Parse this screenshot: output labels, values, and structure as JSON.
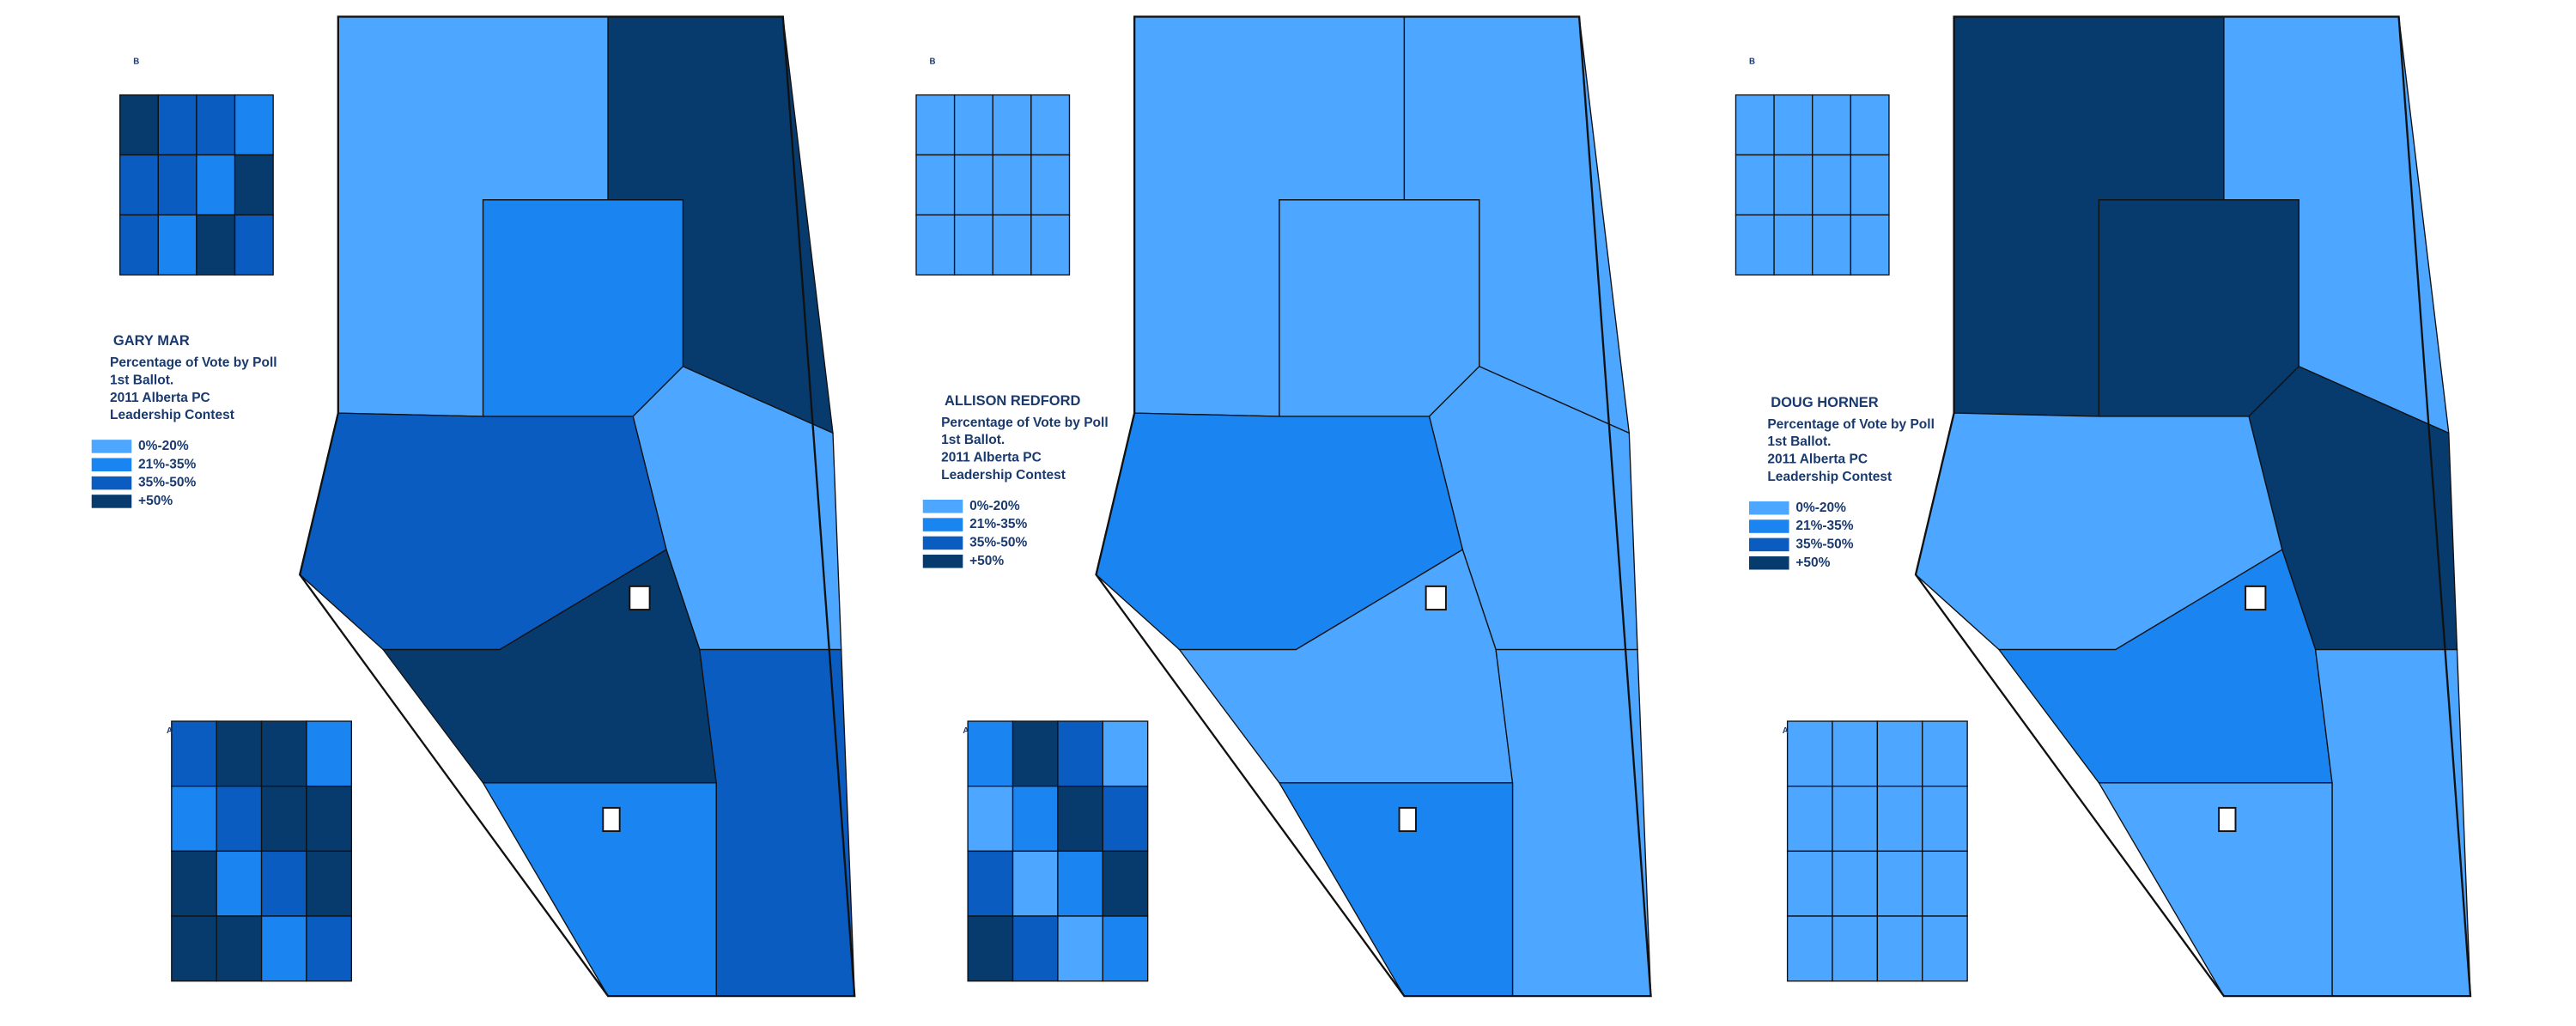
{
  "panels": [
    {
      "title": "GARY MAR",
      "description": [
        "Percentage of Vote by Poll",
        "1st Ballot.",
        "2011 Alberta PC",
        "Leadership Contest"
      ],
      "legend": [
        {
          "label": "0%-20%",
          "color": "#4da6ff"
        },
        {
          "label": "21%-35%",
          "color": "#1a85f0"
        },
        {
          "label": "35%-50%",
          "color": "#0a5cc0"
        },
        {
          "label": "+50%",
          "color": "#073b6e"
        }
      ],
      "inset_labels": [
        "B",
        "A"
      ]
    },
    {
      "title": "ALLISON REDFORD",
      "description": [
        "Percentage of Vote by Poll",
        "1st Ballot.",
        "2011 Alberta PC",
        "Leadership Contest"
      ],
      "legend": [
        {
          "label": "0%-20%",
          "color": "#4da6ff"
        },
        {
          "label": "21%-35%",
          "color": "#1a85f0"
        },
        {
          "label": "35%-50%",
          "color": "#0a5cc0"
        },
        {
          "label": "+50%",
          "color": "#073b6e"
        }
      ],
      "inset_labels": [
        "B",
        "A"
      ]
    },
    {
      "title": "DOUG HORNER",
      "description": [
        "Percentage of Vote by Poll",
        "1st Ballot.",
        "2011 Alberta PC",
        "Leadership Contest"
      ],
      "legend": [
        {
          "label": "0%-20%",
          "color": "#4da6ff"
        },
        {
          "label": "21%-35%",
          "color": "#1a85f0"
        },
        {
          "label": "35%-50%",
          "color": "#0a5cc0"
        },
        {
          "label": "+50%",
          "color": "#073b6e"
        }
      ],
      "inset_labels": [
        "B",
        "A"
      ]
    }
  ]
}
